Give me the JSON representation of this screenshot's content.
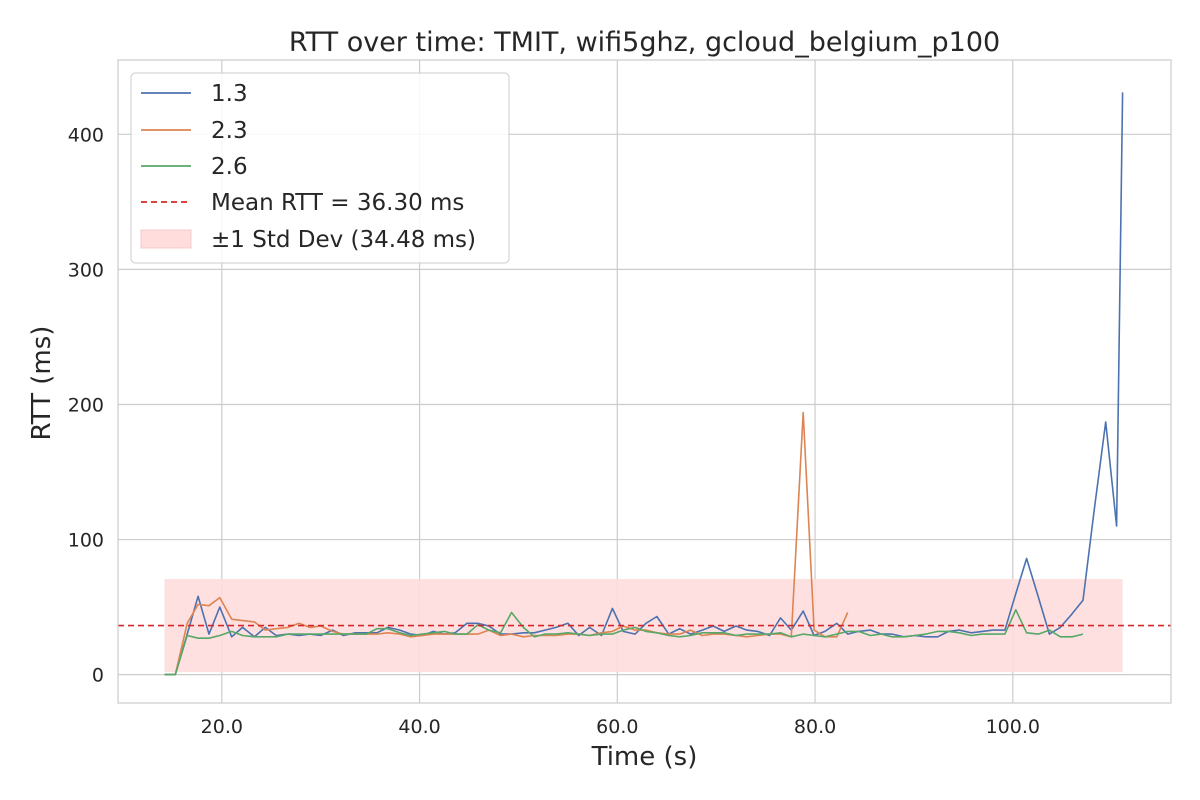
{
  "chart_data": {
    "type": "line",
    "title": "RTT over time: TMIT, wifi5ghz, gcloud_belgium_p100",
    "xlabel": "Time (s)",
    "ylabel": "RTT (ms)",
    "xlim": [
      9.5,
      116
    ],
    "ylim": [
      -21,
      455
    ],
    "xticks": [
      20,
      40,
      60,
      80,
      100
    ],
    "xtick_labels": [
      "20.0",
      "40.0",
      "60.0",
      "80.0",
      "100.0"
    ],
    "yticks": [
      0,
      100,
      200,
      300,
      400
    ],
    "ytick_labels": [
      "0",
      "100",
      "200",
      "300",
      "400"
    ],
    "grid": true,
    "legend_position": "top-left",
    "mean": {
      "label": "Mean RTT = 36.30 ms",
      "value": 36.3,
      "color": "#d62728"
    },
    "std_band": {
      "label": "±1 Std Dev (34.48 ms)",
      "low": 1.82,
      "high": 70.78,
      "x_start": 14.2,
      "x_end": 111.1,
      "color": "#ffdddd"
    },
    "series": [
      {
        "name": "1.3",
        "color": "#4c72b0",
        "x": [
          14.2,
          15.3,
          16.5,
          17.6,
          18.7,
          19.8,
          21.0,
          22.1,
          23.3,
          24.4,
          25.5,
          26.7,
          27.8,
          28.9,
          30.0,
          31.2,
          32.3,
          33.5,
          34.6,
          35.7,
          36.8,
          38.0,
          39.1,
          40.3,
          41.4,
          42.5,
          43.6,
          44.8,
          45.9,
          47.0,
          48.2,
          49.3,
          50.5,
          51.6,
          52.7,
          53.8,
          55.0,
          56.1,
          57.2,
          58.4,
          59.5,
          60.6,
          61.8,
          62.9,
          64.0,
          65.2,
          66.3,
          67.4,
          68.6,
          69.7,
          70.8,
          72.0,
          73.1,
          74.2,
          75.4,
          76.5,
          77.6,
          78.8,
          79.9,
          81.0,
          82.2,
          83.3,
          84.4,
          85.6,
          86.7,
          87.8,
          89.0,
          90.1,
          91.2,
          92.4,
          93.5,
          94.6,
          95.8,
          96.9,
          98.0,
          99.2,
          100.3,
          101.4,
          102.6,
          103.7,
          104.8,
          106.0,
          107.1,
          108.2,
          109.4,
          110.5,
          111.1
        ],
        "values": [
          0,
          0,
          30,
          58,
          30,
          50,
          28,
          35,
          28,
          35,
          29,
          30,
          29,
          30,
          29,
          33,
          29,
          31,
          31,
          31,
          35,
          33,
          30,
          29,
          32,
          30,
          31,
          38,
          38,
          36,
          30,
          30,
          31,
          31,
          33,
          35,
          38,
          29,
          35,
          29,
          49,
          32,
          30,
          38,
          43,
          30,
          34,
          30,
          33,
          36,
          32,
          36,
          33,
          32,
          29,
          42,
          33,
          47,
          29,
          32,
          38,
          30,
          32,
          33,
          30,
          30,
          28,
          29,
          28,
          28,
          32,
          33,
          31,
          32,
          33,
          33,
          60,
          86,
          57,
          30,
          35,
          45,
          55,
          120,
          187,
          110,
          431
        ]
      },
      {
        "name": "2.3",
        "color": "#dd8452",
        "x": [
          14.2,
          15.3,
          16.5,
          17.6,
          18.7,
          19.8,
          21.0,
          22.1,
          23.3,
          24.4,
          25.5,
          26.7,
          27.8,
          28.9,
          30.0,
          31.2,
          32.3,
          33.5,
          34.6,
          35.7,
          36.8,
          38.0,
          39.1,
          40.3,
          41.4,
          42.5,
          43.6,
          44.8,
          45.9,
          47.0,
          48.2,
          49.3,
          50.5,
          51.6,
          52.7,
          53.8,
          55.0,
          56.1,
          57.2,
          58.4,
          59.5,
          60.6,
          61.8,
          62.9,
          64.0,
          65.2,
          66.3,
          67.4,
          68.6,
          69.7,
          70.8,
          72.0,
          73.1,
          74.2,
          75.4,
          76.5,
          77.6,
          78.8,
          79.9,
          81.0,
          82.2,
          83.3
        ],
        "values": [
          0,
          0,
          38,
          52,
          51,
          57,
          41,
          40,
          39,
          33,
          34,
          35,
          38,
          35,
          36,
          32,
          30,
          30,
          30,
          30,
          31,
          30,
          28,
          29,
          30,
          30,
          30,
          30,
          30,
          33,
          29,
          30,
          28,
          29,
          29,
          29,
          30,
          30,
          29,
          31,
          32,
          36,
          33,
          33,
          31,
          30,
          30,
          33,
          29,
          30,
          30,
          29,
          28,
          29,
          30,
          30,
          28,
          194,
          33,
          28,
          28,
          46
        ]
      },
      {
        "name": "2.6",
        "color": "#55a868",
        "x": [
          14.2,
          15.3,
          16.5,
          17.6,
          18.7,
          19.8,
          21.0,
          22.1,
          23.3,
          24.4,
          25.5,
          26.7,
          27.8,
          28.9,
          30.0,
          31.2,
          32.3,
          33.5,
          34.6,
          35.7,
          36.8,
          38.0,
          39.1,
          40.3,
          41.4,
          42.5,
          43.6,
          44.8,
          45.9,
          47.0,
          48.2,
          49.3,
          50.5,
          51.6,
          52.7,
          53.8,
          55.0,
          56.1,
          57.2,
          58.4,
          59.5,
          60.6,
          61.8,
          62.9,
          64.0,
          65.2,
          66.3,
          67.4,
          68.6,
          69.7,
          70.8,
          72.0,
          73.1,
          74.2,
          75.4,
          76.5,
          77.6,
          78.8,
          79.9,
          81.0,
          82.2,
          83.3,
          84.4,
          85.6,
          86.7,
          87.8,
          89.0,
          90.1,
          91.2,
          92.4,
          93.5,
          94.6,
          95.8,
          96.9,
          98.0,
          99.2,
          100.3,
          101.4,
          102.6,
          103.7,
          104.8,
          106.0,
          107.1
        ],
        "values": [
          0,
          0,
          29,
          27,
          27,
          29,
          32,
          29,
          28,
          28,
          28,
          30,
          30,
          30,
          30,
          30,
          30,
          30,
          30,
          34,
          34,
          31,
          29,
          30,
          31,
          32,
          30,
          30,
          37,
          33,
          31,
          46,
          35,
          28,
          30,
          30,
          31,
          30,
          29,
          30,
          30,
          33,
          35,
          32,
          31,
          29,
          28,
          29,
          31,
          31,
          31,
          29,
          30,
          30,
          30,
          31,
          28,
          30,
          29,
          28,
          30,
          32,
          32,
          29,
          30,
          28,
          28,
          29,
          30,
          32,
          32,
          31,
          29,
          30,
          30,
          30,
          48,
          31,
          30,
          33,
          28,
          28,
          30
        ]
      }
    ]
  }
}
